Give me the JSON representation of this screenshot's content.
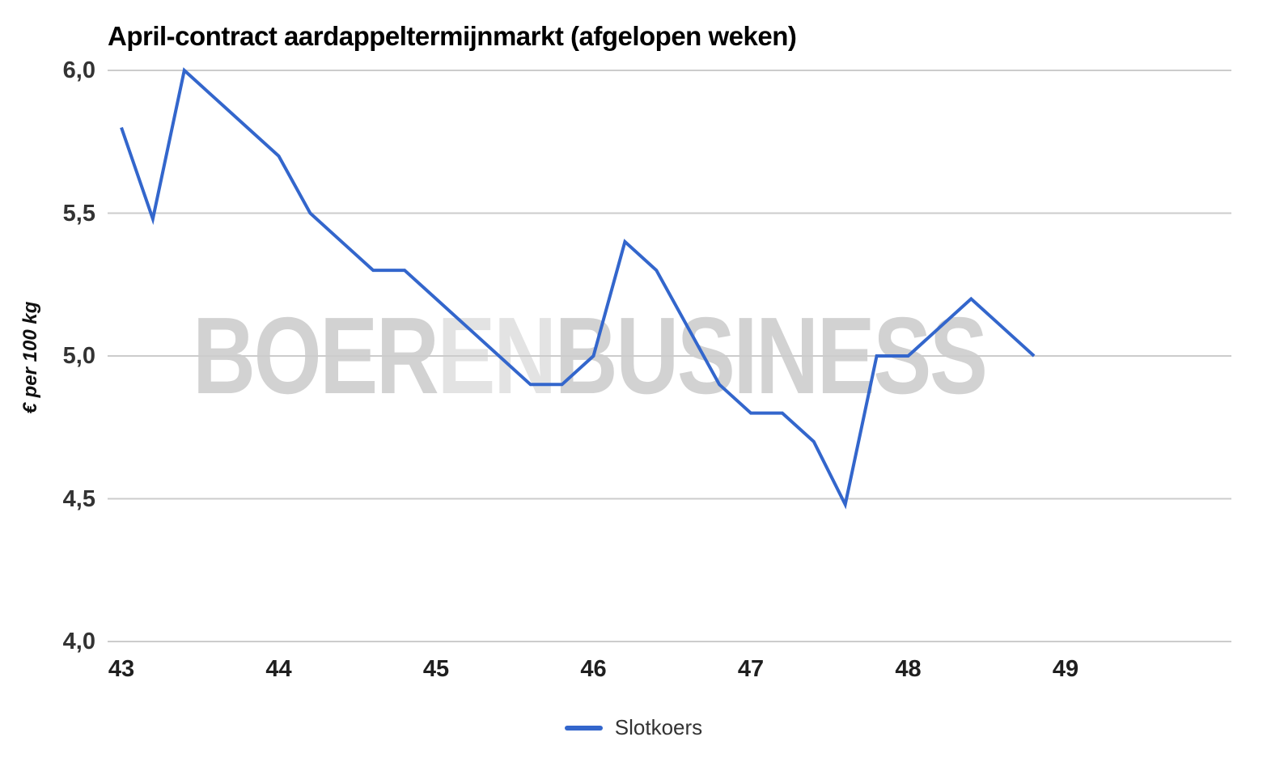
{
  "watermark": {
    "part1": "BOER",
    "part2": "EN",
    "part3": "BUSINESS"
  },
  "colors": {
    "line": "#3366cc",
    "gridline": "#cccccc",
    "watermark_dark": "#d2d2d2",
    "watermark_light": "#e3e3e3",
    "tick_text": "#333333",
    "title_text": "#000000",
    "background": "#ffffff"
  },
  "legend": {
    "label": "Slotkoers",
    "position": "bottom-center"
  },
  "chart_data": {
    "type": "line",
    "title": "April-contract aardappeltermijnmarkt (afgelopen weken)",
    "xlabel": "",
    "ylabel": "€ per 100 kg",
    "ylim": [
      4.0,
      6.0
    ],
    "xlim": [
      43,
      49.05
    ],
    "grid": "horizontal",
    "legend_position": "bottom-center",
    "yticks": [
      {
        "value": 6.0,
        "label": "6,0"
      },
      {
        "value": 5.5,
        "label": "5,5"
      },
      {
        "value": 5.0,
        "label": "5,0"
      },
      {
        "value": 4.5,
        "label": "4,5"
      },
      {
        "value": 4.0,
        "label": "4,0"
      }
    ],
    "xticks": [
      {
        "value": 43,
        "label": "43"
      },
      {
        "value": 44,
        "label": "44"
      },
      {
        "value": 45,
        "label": "45"
      },
      {
        "value": 46,
        "label": "46"
      },
      {
        "value": 47,
        "label": "47"
      },
      {
        "value": 48,
        "label": "48"
      },
      {
        "value": 49,
        "label": "49"
      }
    ],
    "series": [
      {
        "name": "Slotkoers",
        "color": "#3366cc",
        "x": [
          43.0,
          43.2,
          43.4,
          43.6,
          43.8,
          44.0,
          44.2,
          44.4,
          44.6,
          44.8,
          45.0,
          45.2,
          45.4,
          45.6,
          45.8,
          46.0,
          46.2,
          46.4,
          46.6,
          46.8,
          47.0,
          47.2,
          47.4,
          47.6,
          47.8,
          48.0,
          48.2,
          48.4,
          48.6,
          48.8
        ],
        "values": [
          5.8,
          5.48,
          6.0,
          5.9,
          5.8,
          5.7,
          5.5,
          5.4,
          5.3,
          5.3,
          5.2,
          5.1,
          5.0,
          4.9,
          4.9,
          5.0,
          5.4,
          5.3,
          5.1,
          4.9,
          4.8,
          4.8,
          4.7,
          4.48,
          5.0,
          5.0,
          5.1,
          5.2,
          5.1,
          5.0
        ]
      }
    ]
  }
}
